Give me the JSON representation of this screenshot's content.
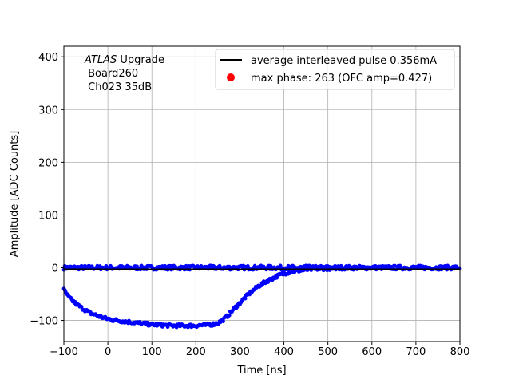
{
  "chart_data": {
    "type": "scatter",
    "title": "",
    "xlabel": "Time [ns]",
    "ylabel": "Amplitude [ADC Counts]",
    "xlim": [
      -100,
      800
    ],
    "ylim": [
      -140,
      420
    ],
    "xticks": [
      -100,
      0,
      100,
      200,
      300,
      400,
      500,
      600,
      700,
      800
    ],
    "yticks": [
      -100,
      0,
      100,
      200,
      300,
      400
    ],
    "grid": true,
    "legend_position": "top-right",
    "annotation": {
      "line1_italic": "ATLAS",
      "line1_rest": " Upgrade",
      "line2": " Board260",
      "line3": " Ch023 35dB"
    },
    "series": [
      {
        "name": "average interleaved pulse 0.356mA",
        "kind": "line",
        "color": "#000000",
        "x": [
          -100,
          800
        ],
        "y": [
          -3,
          -3
        ]
      },
      {
        "name": "max phase: 263 (OFC amp=0.427)",
        "kind": "marker",
        "color": "#ff0000",
        "x": [
          263
        ],
        "y": [
          -3
        ]
      },
      {
        "name": "",
        "kind": "scatter-baseline",
        "color": "#0000ff",
        "x_range": [
          -100,
          800
        ],
        "level": 0,
        "spread": 4
      },
      {
        "name": "",
        "kind": "scatter-pulse",
        "color": "#0000ff",
        "x": [
          -100,
          -90,
          -80,
          -70,
          -60,
          -50,
          -40,
          -30,
          -20,
          -10,
          0,
          10,
          20,
          30,
          40,
          50,
          60,
          70,
          80,
          90,
          100,
          110,
          120,
          130,
          140,
          150,
          160,
          170,
          180,
          190,
          200,
          210,
          220,
          230,
          240,
          250,
          260,
          270,
          280,
          290,
          300,
          310,
          320,
          330,
          340,
          350,
          360,
          370,
          380,
          390,
          400,
          410,
          420,
          430,
          440,
          450,
          460,
          470,
          480,
          490,
          500,
          510,
          520
        ],
        "y": [
          -42,
          -55,
          -63,
          -70,
          -76,
          -81,
          -86,
          -89,
          -92,
          -95,
          -97,
          -99,
          -100,
          -101,
          -102,
          -103,
          -104,
          -105,
          -106,
          -107,
          -108,
          -108,
          -109,
          -109,
          -110,
          -110,
          -110,
          -110,
          -110,
          -110,
          -110,
          -109,
          -109,
          -108,
          -107,
          -105,
          -100,
          -93,
          -84,
          -75,
          -67,
          -58,
          -50,
          -43,
          -36,
          -31,
          -26,
          -22,
          -18,
          -14,
          -11,
          -9,
          -7,
          -6,
          -5,
          -4,
          -3,
          -3,
          -2,
          -2,
          -2,
          -1,
          -1
        ]
      }
    ]
  }
}
